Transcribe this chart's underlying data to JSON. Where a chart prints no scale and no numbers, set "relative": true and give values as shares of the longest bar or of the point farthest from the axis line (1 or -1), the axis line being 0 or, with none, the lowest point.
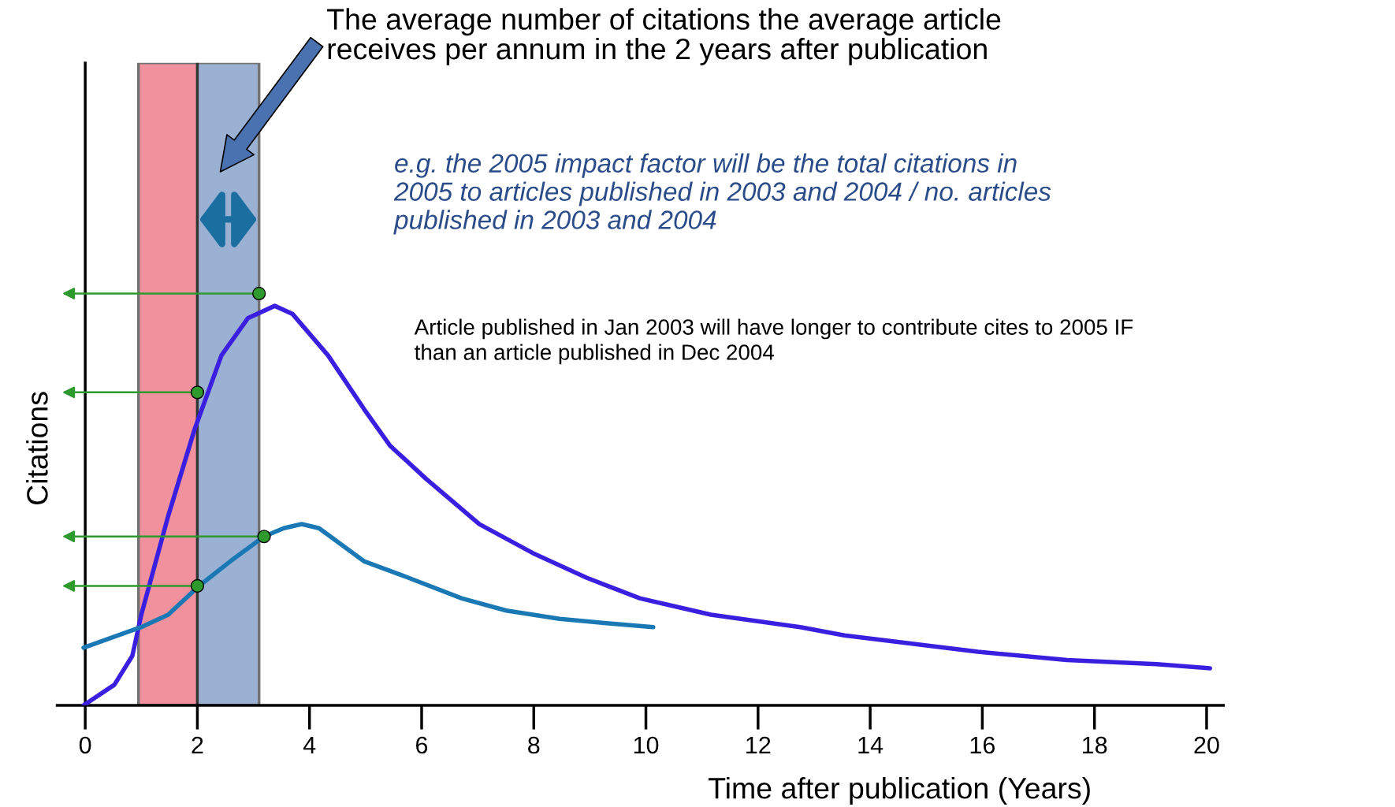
{
  "chart_data": {
    "type": "line",
    "relative": true,
    "xlabel": "Time after publication (Years)",
    "ylabel": "Citations",
    "xlim": [
      -0.5,
      20.3
    ],
    "xticks": [
      0,
      2,
      4,
      6,
      8,
      10,
      12,
      14,
      16,
      18,
      20
    ],
    "marker": "none",
    "line_style": "solid",
    "series": [
      {
        "color": "#3a1fe0",
        "x": [
          -0.03,
          0.52,
          0.84,
          1.0,
          1.48,
          1.95,
          2.43,
          2.9,
          3.38,
          3.7,
          4.33,
          4.97,
          5.44,
          6.08,
          7.03,
          7.98,
          8.94,
          9.89,
          10.52,
          11.16,
          12.75,
          13.54,
          15.92,
          17.51,
          19.11,
          20.06
        ],
        "values": [
          0,
          0.05,
          0.12,
          0.22,
          0.46,
          0.67,
          0.85,
          0.94,
          0.97,
          0.95,
          0.85,
          0.72,
          0.63,
          0.55,
          0.44,
          0.37,
          0.31,
          0.26,
          0.24,
          0.22,
          0.19,
          0.17,
          0.13,
          0.11,
          0.1,
          0.09
        ]
      },
      {
        "color": "#1a78b4",
        "x": [
          -0.03,
          1.0,
          1.48,
          2.03,
          2.59,
          3.19,
          3.54,
          3.86,
          4.17,
          4.97,
          5.76,
          6.71,
          7.51,
          8.46,
          9.25,
          10.13
        ],
        "values": [
          0.14,
          0.19,
          0.22,
          0.29,
          0.35,
          0.41,
          0.43,
          0.44,
          0.43,
          0.35,
          0.31,
          0.26,
          0.23,
          0.21,
          0.2,
          0.19
        ]
      },
      {
        "type": "scatter",
        "marker": "circle",
        "color": "#2e9a2e",
        "x": [
          3.1,
          2.0,
          3.19,
          2.0
        ],
        "values": [
          1.0,
          0.76,
          0.41,
          0.29
        ]
      }
    ],
    "bands": [
      {
        "axis": "x",
        "from": 0.95,
        "to": 2.0,
        "color": "#e8384f"
      },
      {
        "axis": "x",
        "from": 2.0,
        "to": 3.1,
        "color": "#4a72b0"
      }
    ],
    "annotations": [
      "The average number of citations the average article\nreceives per annum in the 2 years after publication",
      "e.g. the 2005 impact factor will be the total citations in\n2005 to articles published in 2003 and 2004 / no. articles\npublished in 2003 and 2004",
      "Article published in Jan 2003 will have longer to contribute cites to 2005 IF\nthan an article published in Dec 2004"
    ]
  }
}
